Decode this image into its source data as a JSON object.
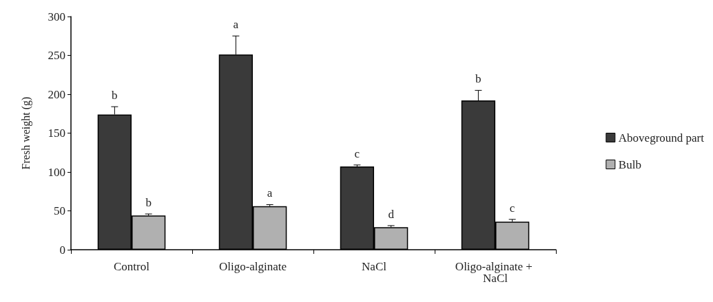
{
  "chart_data": {
    "type": "bar",
    "ylabel": "Fresh weight (g)",
    "categories": [
      "Control",
      "Oligo-alginate",
      "NaCl",
      "Oligo-alginate + NaCl"
    ],
    "series": [
      {
        "name": "Aboveground part",
        "color": "#3a3a3a",
        "values": [
          174,
          251,
          107,
          192
        ],
        "errors": [
          10,
          24,
          2,
          13
        ],
        "value_labels": [
          "b",
          "a",
          "c",
          "b"
        ]
      },
      {
        "name": "Bulb",
        "color": "#b0b0b0",
        "values": [
          44,
          56,
          29,
          36
        ],
        "errors": [
          2,
          2,
          2,
          3
        ],
        "value_labels": [
          "b",
          "a",
          "d",
          "c"
        ]
      }
    ],
    "ylim": [
      0,
      300
    ],
    "yticks": [
      0,
      50,
      100,
      150,
      200,
      250,
      300
    ],
    "grid": false,
    "legend": "right"
  }
}
